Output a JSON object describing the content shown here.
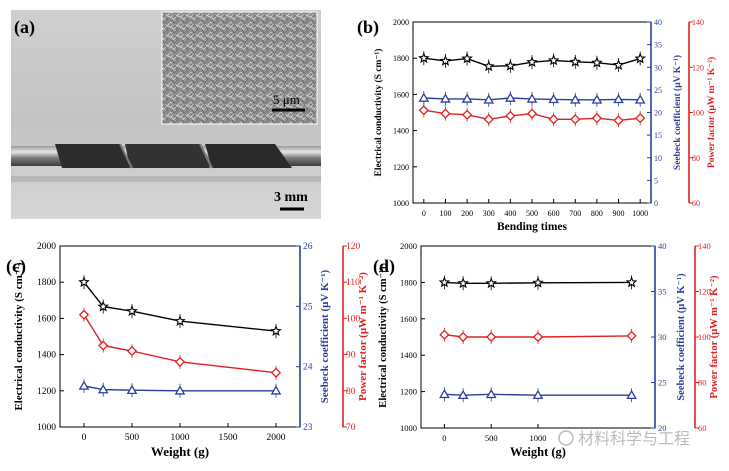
{
  "figure": {
    "panel_a": {
      "label": "(a)",
      "inset_scale": "5 μm",
      "main_scale": "3 mm"
    },
    "watermark": "材料科学与工程"
  },
  "chart_data": [
    {
      "panel": "(b)",
      "type": "line",
      "xlabel": "Bending times",
      "ylabel_left": "Electrical conductivity (S cm⁻¹)",
      "ylabel_right1": "Seebeck coefficient (μV K⁻¹)",
      "ylabel_right2": "Power factor (μW m⁻¹ K⁻²)",
      "x": [
        0,
        100,
        200,
        300,
        400,
        500,
        600,
        700,
        800,
        900,
        1000
      ],
      "xticks": [
        "0",
        "100",
        "200",
        "300",
        "400",
        "500",
        "600",
        "700",
        "800",
        "900",
        "1000"
      ],
      "xlim": [
        -50,
        1050
      ],
      "ylim_left": [
        1000,
        2000
      ],
      "yticks_left": [
        "1000",
        "1200",
        "1400",
        "1600",
        "1800",
        "2000"
      ],
      "ylim_right1": [
        0,
        40
      ],
      "yticks_right1": [
        "0",
        "5",
        "10",
        "15",
        "20",
        "25",
        "30",
        "35",
        "40"
      ],
      "ylim_right2": [
        60,
        140
      ],
      "yticks_right2": [
        "60",
        "80",
        "100",
        "120",
        "140"
      ],
      "series": [
        {
          "name": "Electrical conductivity",
          "axis": "left",
          "marker": "star",
          "color": "#000000",
          "values": [
            1800,
            1785,
            1798,
            1755,
            1758,
            1778,
            1788,
            1780,
            1775,
            1762,
            1798
          ]
        },
        {
          "name": "Power factor",
          "axis": "right2",
          "marker": "diamond",
          "color": "#e02020",
          "values": [
            101,
            99.5,
            99,
            97,
            98.5,
            99.5,
            97,
            97,
            97.5,
            96.5,
            97.5
          ]
        },
        {
          "name": "Seebeck coefficient",
          "axis": "right1",
          "marker": "triangle",
          "color": "#2b3f9b",
          "values": [
            23.2,
            23.0,
            23.0,
            22.8,
            23.2,
            23.0,
            22.9,
            22.8,
            22.8,
            22.9,
            22.8
          ]
        }
      ]
    },
    {
      "panel": "(c)",
      "type": "line",
      "xlabel": "Weight (g)",
      "ylabel_left": "Electrical conductivity (S cm⁻¹)",
      "ylabel_right1": "Seebeck coefficient (μV K⁻¹)",
      "ylabel_right2": "Power factor (μW m⁻¹ K⁻²)",
      "x": [
        0,
        200,
        500,
        1000,
        2000
      ],
      "xticks": [
        "0",
        "500",
        "1000",
        "1500",
        "2000"
      ],
      "xtick_values": [
        0,
        500,
        1000,
        1500,
        2000
      ],
      "xlim": [
        -250,
        2250
      ],
      "ylim_left": [
        1000,
        2000
      ],
      "yticks_left": [
        "1000",
        "1200",
        "1400",
        "1600",
        "1800",
        "2000"
      ],
      "ylim_right1": [
        23,
        26
      ],
      "yticks_right1": [
        "23",
        "24",
        "25",
        "26"
      ],
      "ylim_right2": [
        70,
        120
      ],
      "yticks_right2": [
        "70",
        "80",
        "90",
        "100",
        "110",
        "120"
      ],
      "series": [
        {
          "name": "Electrical conductivity",
          "axis": "left",
          "marker": "star",
          "color": "#000000",
          "values": [
            1800,
            1665,
            1640,
            1585,
            1530
          ]
        },
        {
          "name": "Power factor",
          "axis": "right2",
          "marker": "diamond",
          "color": "#e02020",
          "values": [
            101,
            92.5,
            91,
            88,
            85
          ]
        },
        {
          "name": "Seebeck coefficient",
          "axis": "right1",
          "marker": "triangle",
          "color": "#2b3f9b",
          "values": [
            23.68,
            23.62,
            23.61,
            23.6,
            23.6
          ]
        }
      ]
    },
    {
      "panel": "(d)",
      "type": "line",
      "xlabel": "Weight (g)",
      "ylabel_left": "Electrical conductivity (S cm⁻¹)",
      "ylabel_right1": "Seebeck coefficient (μV K⁻¹)",
      "ylabel_right2": "Power factor (μW m⁻¹ K⁻²)",
      "x": [
        0,
        200,
        500,
        1000,
        2000
      ],
      "xticks": [
        "0",
        "500",
        "1000"
      ],
      "xtick_values": [
        0,
        500,
        1000
      ],
      "xlim": [
        -250,
        2250
      ],
      "ylim_left": [
        1000,
        2000
      ],
      "yticks_left": [
        "1000",
        "1200",
        "1400",
        "1600",
        "1800",
        "2000"
      ],
      "ylim_right1": [
        20,
        40
      ],
      "yticks_right1": [
        "20",
        "25",
        "30",
        "35",
        "40"
      ],
      "ylim_right2": [
        60,
        140
      ],
      "yticks_right2": [
        "60",
        "80",
        "100",
        "120",
        "140"
      ],
      "series": [
        {
          "name": "Electrical conductivity",
          "axis": "left",
          "marker": "star",
          "color": "#000000",
          "values": [
            1800,
            1795,
            1795,
            1798,
            1800
          ]
        },
        {
          "name": "Power factor",
          "axis": "right2",
          "marker": "diamond",
          "color": "#e02020",
          "values": [
            101,
            100,
            100,
            100,
            100.5
          ]
        },
        {
          "name": "Seebeck coefficient",
          "axis": "right1",
          "marker": "triangle",
          "color": "#2b3f9b",
          "values": [
            23.7,
            23.6,
            23.7,
            23.6,
            23.6
          ]
        }
      ]
    }
  ]
}
